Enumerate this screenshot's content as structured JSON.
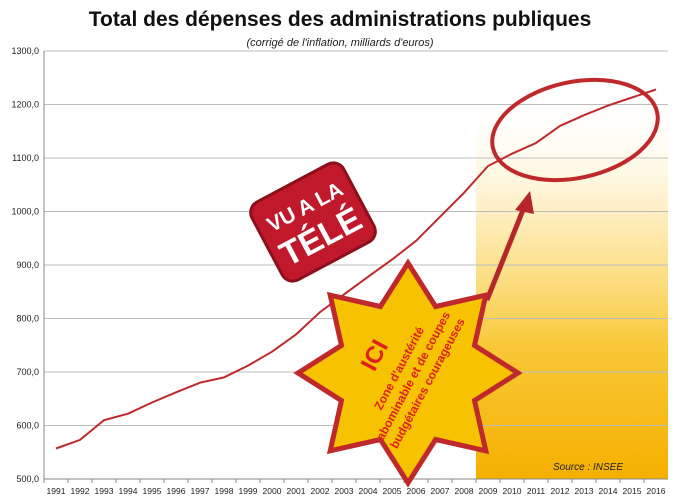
{
  "chart_data": {
    "type": "line",
    "title": "Total des dépenses des administrations publiques",
    "subtitle": "(corrigé de l'inflation, milliards d'euros)",
    "xlabel": "",
    "ylabel": "",
    "x": [
      "1991",
      "1992",
      "1993",
      "1994",
      "1995",
      "1996",
      "1997",
      "1998",
      "1999",
      "2000",
      "2001",
      "2002",
      "2003",
      "2004",
      "2005",
      "2006",
      "2007",
      "2008",
      "2009",
      "2010",
      "2011",
      "2012",
      "2013",
      "2014",
      "2015",
      "2016"
    ],
    "series": [
      {
        "values": [
          557,
          573,
          610,
          622,
          643,
          662,
          680,
          690,
          712,
          738,
          770,
          812,
          845,
          878,
          910,
          945,
          990,
          1035,
          1085,
          1108,
          1128,
          1160,
          1180,
          1198,
          1213,
          1228
        ],
        "color": "#c0292b"
      }
    ],
    "ylim": [
      500,
      1300
    ],
    "yticks": [
      "500,0",
      "600,0",
      "700,0",
      "800,0",
      "900,0",
      "1000,0",
      "1100,0",
      "1200,0",
      "1300,0"
    ],
    "grid": true,
    "highlight_band": {
      "from": "2009",
      "to": "2016",
      "color": "#f7b500"
    },
    "source": "Source : INSEE",
    "annotations": {
      "stamp_lines": [
        "VU A LA",
        "TÉLÉ"
      ],
      "star_title": "ICI",
      "star_lines": [
        "Zone d'austérité",
        "abominable et de coupes",
        "budgétaires courageuses"
      ]
    },
    "colors": {
      "line": "#c0292b",
      "star_fill": "#f7c200",
      "star_text": "#e02020",
      "stamp": "#c0192b"
    }
  }
}
